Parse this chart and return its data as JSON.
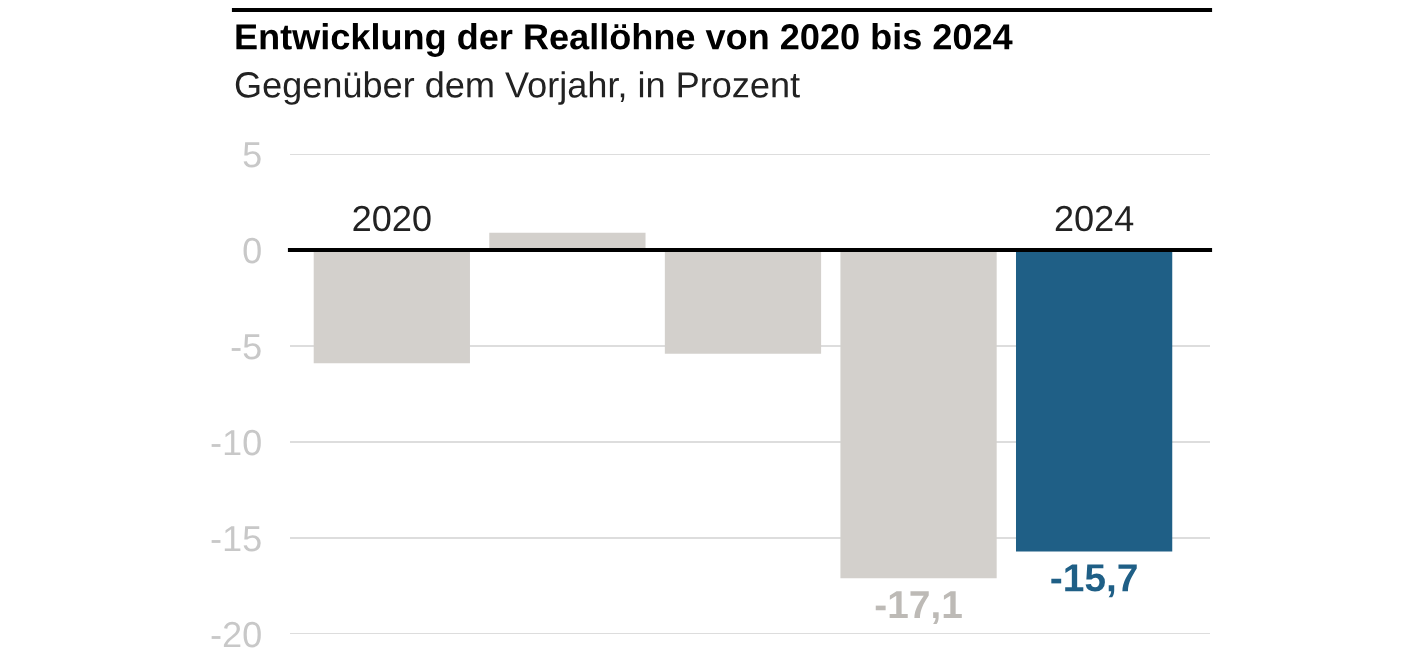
{
  "chart_data": {
    "type": "bar",
    "title": "Entwicklung der Reallöhne von 2020 bis 2024",
    "subtitle": "Gegenüber dem Vorjahr, in Prozent",
    "categories": [
      "2020",
      null,
      null,
      null,
      "2024"
    ],
    "values": [
      -5.9,
      0.9,
      -5.4,
      -17.1,
      -15.7
    ],
    "colors": [
      "#d3d0cc",
      "#d3d0cc",
      "#d3d0cc",
      "#d3d0cc",
      "#1f5f86"
    ],
    "value_labels": [
      null,
      null,
      null,
      "-17,1",
      "-15,7"
    ],
    "ylim": [
      -20,
      5
    ],
    "yticks": [
      -20,
      -15,
      -10,
      -5,
      0,
      5
    ],
    "grid": "y"
  }
}
